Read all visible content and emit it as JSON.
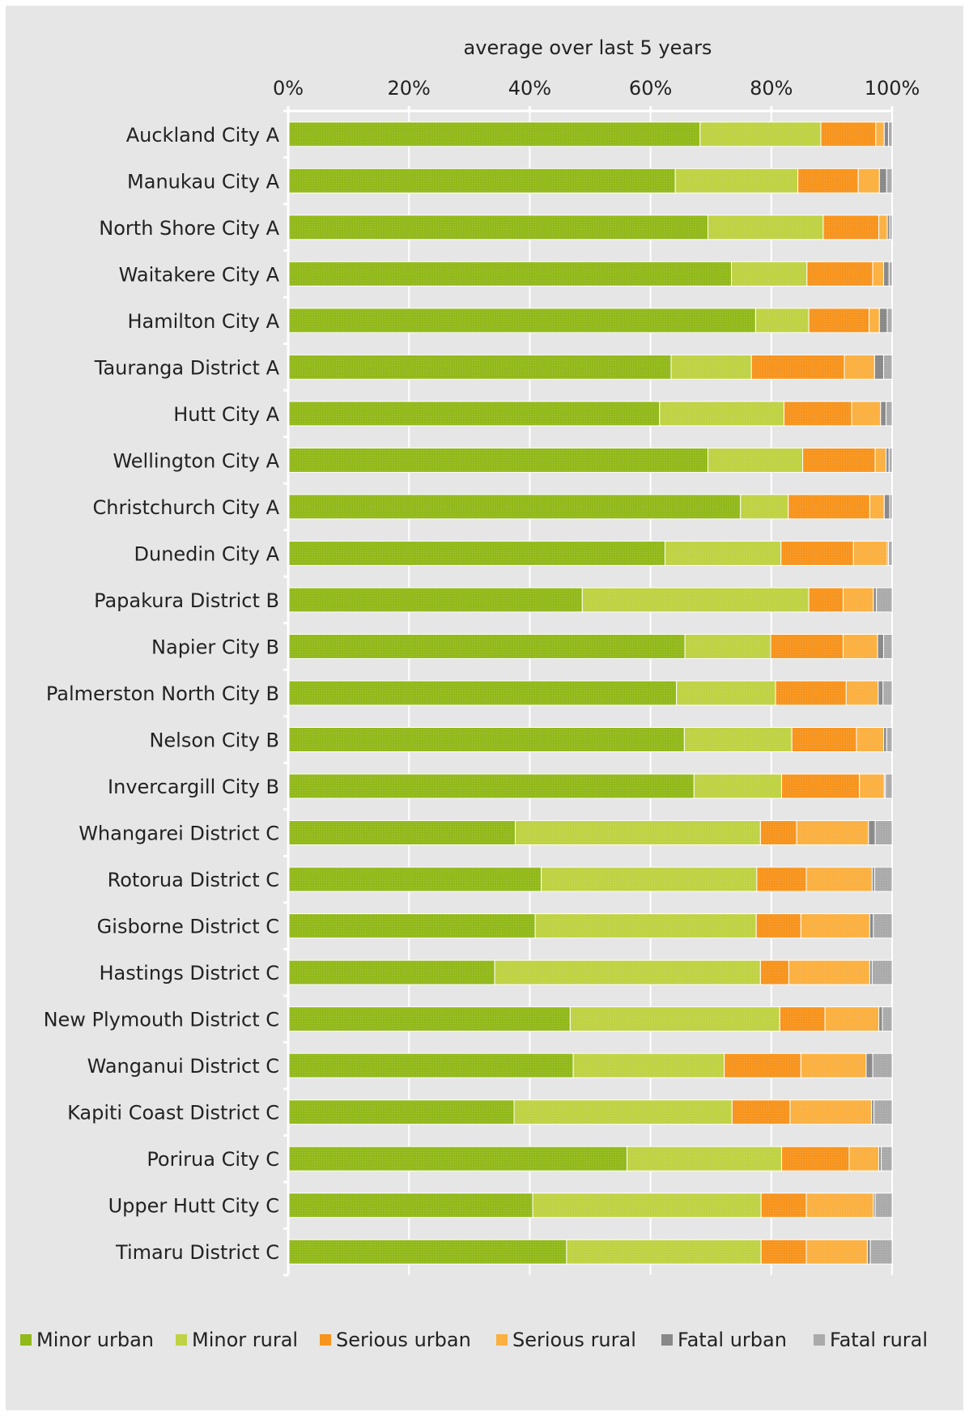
{
  "chart_data": {
    "type": "bar",
    "orientation": "horizontal",
    "stacked": "percent",
    "title": "",
    "xlabel": "average over last 5 years",
    "ylabel": "",
    "xlim": [
      0,
      100
    ],
    "x_ticks": [
      "0%",
      "20%",
      "40%",
      "60%",
      "80%",
      "100%"
    ],
    "grid": true,
    "legend_position": "bottom",
    "categories": [
      "Auckland City A",
      "Manukau City A",
      "North Shore City A",
      "Waitakere City A",
      "Hamilton City A",
      "Tauranga District A",
      "Hutt City A",
      "Wellington City A",
      "Christchurch City A",
      "Dunedin City A",
      "Papakura District B",
      "Napier City B",
      "Palmerston North City B",
      "Nelson City B",
      "Invercargill City B",
      "Whangarei District C",
      "Rotorua District C",
      "Gisborne District C",
      "Hastings District C",
      "New Plymouth District C",
      "Wanganui District C",
      "Kapiti Coast District C",
      "Porirua City C",
      "Upper Hutt City C",
      "Timaru District C"
    ],
    "series": [
      {
        "name": "Minor urban",
        "color": "#92b91a",
        "values": [
          68.2,
          64.1,
          69.5,
          73.4,
          77.4,
          63.4,
          61.5,
          69.5,
          74.9,
          62.4,
          48.7,
          65.7,
          64.3,
          65.6,
          67.2,
          37.6,
          41.9,
          40.9,
          34.2,
          46.7,
          47.2,
          37.4,
          56.1,
          40.5,
          46.1
        ]
      },
      {
        "name": "Minor rural",
        "color": "#bfd243",
        "values": [
          20.0,
          20.3,
          19.1,
          12.5,
          8.8,
          13.3,
          20.6,
          15.7,
          7.9,
          19.2,
          37.5,
          14.2,
          16.4,
          17.8,
          14.5,
          40.6,
          35.7,
          36.6,
          44.0,
          34.7,
          25.0,
          36.1,
          25.6,
          37.8,
          32.2
        ]
      },
      {
        "name": "Serious urban",
        "color": "#f7941d",
        "values": [
          9.1,
          10.0,
          9.2,
          10.9,
          10.0,
          15.4,
          11.2,
          12.0,
          13.5,
          12.0,
          5.7,
          12.0,
          11.7,
          10.7,
          12.9,
          6.0,
          8.2,
          7.4,
          4.7,
          7.5,
          12.7,
          9.6,
          11.2,
          7.5,
          7.5
        ]
      },
      {
        "name": "Serious rural",
        "color": "#fbb040",
        "values": [
          1.4,
          3.5,
          1.4,
          1.8,
          1.7,
          5.0,
          4.8,
          1.8,
          2.4,
          5.6,
          5.0,
          5.7,
          5.3,
          4.5,
          4.1,
          11.9,
          10.9,
          11.4,
          13.4,
          8.9,
          10.8,
          13.5,
          4.9,
          11.1,
          10.1
        ]
      },
      {
        "name": "Fatal urban",
        "color": "#888888",
        "values": [
          0.7,
          1.2,
          0.4,
          0.9,
          1.3,
          1.5,
          0.9,
          0.5,
          0.9,
          0.2,
          0.5,
          1.0,
          0.8,
          0.5,
          0.2,
          1.1,
          0.4,
          0.6,
          0.4,
          0.6,
          1.1,
          0.4,
          0.4,
          0.3,
          0.5
        ]
      },
      {
        "name": "Fatal rural",
        "color": "#aaaaaa",
        "values": [
          0.6,
          0.9,
          0.4,
          0.5,
          0.8,
          1.4,
          1.0,
          0.5,
          0.4,
          0.6,
          2.6,
          1.4,
          1.5,
          0.9,
          1.1,
          2.8,
          2.9,
          3.1,
          3.3,
          1.6,
          3.2,
          3.0,
          1.8,
          2.8,
          3.6
        ]
      }
    ]
  }
}
